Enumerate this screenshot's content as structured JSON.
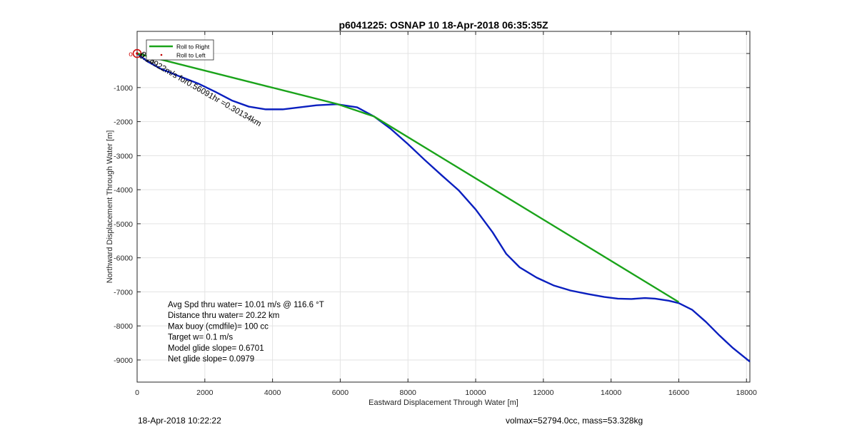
{
  "chart_data": {
    "type": "line",
    "title": "p6041225: OSNAP 10 18-Apr-2018 06:35:35Z",
    "xlabel": "Eastward Displacement Through Water [m]",
    "ylabel": "Northward Displacement Through Water [m]",
    "xlim": [
      0,
      18100
    ],
    "ylim": [
      -9650,
      650
    ],
    "xticks": [
      0,
      2000,
      4000,
      6000,
      8000,
      10000,
      12000,
      14000,
      16000,
      18000
    ],
    "xtick_labels": [
      "0",
      "2000",
      "4000",
      "6000",
      "8000",
      "10000",
      "12000",
      "14000",
      "16000",
      "18000"
    ],
    "yticks": [
      -9000,
      -8000,
      -7000,
      -6000,
      -5000,
      -4000,
      -3000,
      -2000,
      -1000
    ],
    "ytick_labels": [
      "-9000",
      "-8000",
      "-7000",
      "-6000",
      "-5000",
      "-4000",
      "-3000",
      "-2000",
      "-1000"
    ],
    "grid": true,
    "legend_position": "top-left",
    "legend": [
      "Roll to Right",
      "Roll to Left"
    ],
    "series": [
      {
        "name": "Roll to Right",
        "color": "#1aa31a",
        "x": [
          0,
          5900,
          7000,
          16000
        ],
        "y": [
          0,
          -1480,
          -1850,
          -7300
        ]
      },
      {
        "name": "Roll to Left",
        "color": "#c00000",
        "x": [
          0
        ],
        "y": [
          0
        ]
      },
      {
        "color": "#0a1fbf",
        "x": [
          0,
          300,
          700,
          1200,
          1800,
          2300,
          2800,
          3300,
          3800,
          4300,
          4800,
          5300,
          5900,
          6500,
          7000,
          7500,
          8000,
          8500,
          9000,
          9500,
          10000,
          10500,
          10900,
          11300,
          11800,
          12300,
          12800,
          13300,
          13800,
          14200,
          14600,
          15000,
          15300,
          15700,
          16000,
          16400,
          16800,
          17200,
          17600,
          18100
        ],
        "y": [
          0,
          -230,
          -450,
          -650,
          -880,
          -1120,
          -1380,
          -1560,
          -1640,
          -1640,
          -1580,
          -1520,
          -1490,
          -1580,
          -1850,
          -2220,
          -2660,
          -3130,
          -3580,
          -4020,
          -4580,
          -5250,
          -5880,
          -6280,
          -6580,
          -6810,
          -6960,
          -7060,
          -7150,
          -7200,
          -7210,
          -7180,
          -7200,
          -7260,
          -7330,
          -7530,
          -7880,
          -8280,
          -8650,
          -9050
        ]
      }
    ],
    "annotations": {
      "start_marker": "o",
      "tilted_label": "0.14922m/s for0.56091hr =0.30134km",
      "tilted_label_overlap": "0.15",
      "stats": [
        "Avg Spd thru water= 10.01 m/s @ 116.6 °T",
        "Distance thru water= 20.22 km",
        "Max buoy (cmdfile)= 100 cc",
        "Target w= 0.1 m/s",
        "Model glide slope= 0.6701",
        "Net glide slope= 0.0979"
      ]
    }
  },
  "footer": {
    "date": "18-Apr-2018 10:22:22",
    "info": "volmax=52794.0cc, mass=53.328kg"
  }
}
